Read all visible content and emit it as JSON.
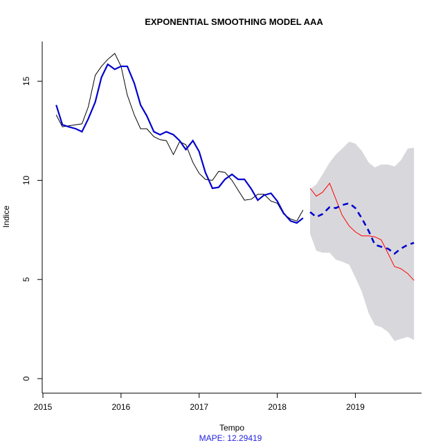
{
  "chart_data": {
    "type": "line",
    "title": "EXPONENTIAL SMOOTHING MODEL AAA",
    "xlabel": "Tempo",
    "ylabel": "Indice",
    "xlim": [
      2015,
      2019.9
    ],
    "ylim": [
      0,
      17
    ],
    "x_ticks": [
      2015,
      2016,
      2017,
      2018,
      2019
    ],
    "x_tick_labels": [
      "2015",
      "2016",
      "2017",
      "2018",
      "2019"
    ],
    "y_ticks": [
      0,
      5,
      10,
      15
    ],
    "y_tick_labels": [
      "0",
      "5",
      "10",
      "15"
    ],
    "mape_label": "MAPE:  12.29419",
    "colors": {
      "observed": "#000000",
      "fitted": "#0000cd",
      "forecast": "#0000cd",
      "test": "#ff0000",
      "interval": "#d8d8dc"
    },
    "series": [
      {
        "role": "observed",
        "x": [
          2015.17,
          2015.25,
          2015.33,
          2015.42,
          2015.5,
          2015.58,
          2015.67,
          2015.75,
          2015.83,
          2015.92,
          2016.0,
          2016.08,
          2016.17,
          2016.25,
          2016.33,
          2016.42,
          2016.5,
          2016.58,
          2016.67,
          2016.75,
          2016.83,
          2016.92,
          2017.0,
          2017.08,
          2017.17,
          2017.25,
          2017.33,
          2017.42,
          2017.5,
          2017.58,
          2017.67,
          2017.75,
          2017.83,
          2017.92,
          2018.0,
          2018.08,
          2018.17,
          2018.25,
          2018.33
        ],
        "y": [
          13.3,
          12.7,
          12.75,
          12.8,
          12.85,
          13.7,
          15.3,
          15.75,
          16.1,
          16.4,
          15.75,
          14.3,
          13.3,
          12.6,
          12.6,
          12.2,
          12.05,
          12.0,
          11.3,
          11.95,
          11.8,
          10.9,
          10.35,
          10.05,
          10.0,
          10.45,
          10.4,
          10.0,
          9.5,
          9.0,
          9.05,
          9.3,
          9.3,
          8.95,
          8.85,
          8.3,
          8.05,
          7.95,
          8.5
        ]
      },
      {
        "role": "fitted",
        "x": [
          2015.17,
          2015.25,
          2015.33,
          2015.42,
          2015.5,
          2015.58,
          2015.67,
          2015.75,
          2015.83,
          2015.92,
          2016.0,
          2016.08,
          2016.17,
          2016.25,
          2016.33,
          2016.42,
          2016.5,
          2016.58,
          2016.67,
          2016.75,
          2016.83,
          2016.92,
          2017.0,
          2017.08,
          2017.17,
          2017.25,
          2017.33,
          2017.42,
          2017.5,
          2017.58,
          2017.67,
          2017.75,
          2017.83,
          2017.92,
          2018.0,
          2018.08,
          2018.17,
          2018.25,
          2018.33
        ],
        "y": [
          13.8,
          12.8,
          12.7,
          12.6,
          12.45,
          13.1,
          13.95,
          15.2,
          15.85,
          15.6,
          15.75,
          15.75,
          14.9,
          13.8,
          13.25,
          12.45,
          12.3,
          12.45,
          12.3,
          12.0,
          11.55,
          12.0,
          11.45,
          10.4,
          9.6,
          9.65,
          10.05,
          10.3,
          10.05,
          10.05,
          9.55,
          9.0,
          9.25,
          9.35,
          8.95,
          8.35,
          7.95,
          7.85,
          8.1
        ]
      },
      {
        "role": "forecast",
        "x": [
          2018.42,
          2018.5,
          2018.58,
          2018.67,
          2018.75,
          2018.83,
          2018.92,
          2019.0,
          2019.08,
          2019.17,
          2019.25,
          2019.33,
          2019.42,
          2019.5,
          2019.58,
          2019.67,
          2019.75
        ],
        "y": [
          8.4,
          8.15,
          8.3,
          8.65,
          8.6,
          8.75,
          8.85,
          8.6,
          8.1,
          7.45,
          6.75,
          6.65,
          6.55,
          6.3,
          6.55,
          6.75,
          6.85
        ]
      },
      {
        "role": "test",
        "x": [
          2018.42,
          2018.5,
          2018.58,
          2018.67,
          2018.75,
          2018.83,
          2018.92,
          2019.0,
          2019.08,
          2019.17,
          2019.25,
          2019.33,
          2019.42,
          2019.5,
          2019.58,
          2019.67,
          2019.75
        ],
        "y": [
          9.6,
          9.2,
          9.4,
          9.85,
          9.05,
          8.25,
          7.7,
          7.4,
          7.2,
          7.2,
          7.15,
          7.0,
          6.3,
          5.65,
          5.55,
          5.3,
          4.95
        ]
      }
    ],
    "interval": {
      "x": [
        2018.42,
        2018.5,
        2018.58,
        2018.67,
        2018.75,
        2018.83,
        2018.92,
        2019.0,
        2019.08,
        2019.17,
        2019.25,
        2019.33,
        2019.42,
        2019.5,
        2019.58,
        2019.67,
        2019.75
      ],
      "upper": [
        9.55,
        9.8,
        10.3,
        10.9,
        11.3,
        11.6,
        11.95,
        11.85,
        11.5,
        10.9,
        10.65,
        10.8,
        10.8,
        10.7,
        11.0,
        11.6,
        11.65
      ],
      "lower": [
        7.3,
        6.45,
        6.35,
        6.35,
        6.0,
        5.9,
        5.75,
        5.1,
        4.4,
        3.3,
        2.7,
        2.6,
        2.35,
        1.9,
        2.0,
        2.1,
        1.95
      ]
    }
  }
}
